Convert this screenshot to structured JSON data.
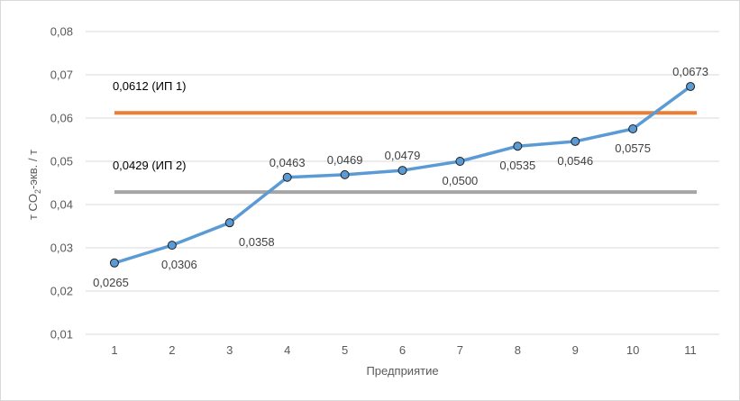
{
  "chart_data": {
    "type": "line",
    "xlabel": "Предприятие",
    "ylabel_parts": {
      "main": "т CO",
      "sub": "2",
      "rest": "-экв. / т"
    },
    "ylim": [
      0.01,
      0.08
    ],
    "yticks": [
      0.01,
      0.02,
      0.03,
      0.04,
      0.05,
      0.06,
      0.07,
      0.08
    ],
    "ytick_labels": [
      "0,01",
      "0,02",
      "0,03",
      "0,04",
      "0,05",
      "0,06",
      "0,07",
      "0,08"
    ],
    "categories": [
      "1",
      "2",
      "3",
      "4",
      "5",
      "6",
      "7",
      "8",
      "9",
      "10",
      "11"
    ],
    "grid": true,
    "series": [
      {
        "values": [
          0.0265,
          0.0306,
          0.0358,
          0.0463,
          0.0469,
          0.0479,
          0.05,
          0.0535,
          0.0546,
          0.0575,
          0.0673
        ],
        "labels": [
          "0,0265",
          "0,0306",
          "0,0358",
          "0,0463",
          "0,0469",
          "0,0479",
          "0,0500",
          "0,0535",
          "0,0546",
          "0,0575",
          "0,0673"
        ],
        "label_position": [
          "below",
          "below",
          "below",
          "above",
          "above",
          "above",
          "below",
          "below",
          "below",
          "below",
          "above"
        ],
        "color": "#5b9bd5",
        "marker_color": "#5b9bd5"
      }
    ],
    "reference_lines": [
      {
        "value": 0.0612,
        "label": "0,0612 (ИП 1)",
        "color": "#ed7d31"
      },
      {
        "value": 0.0429,
        "label": "0,0429 (ИП 2)",
        "color": "#a5a5a5"
      }
    ]
  }
}
